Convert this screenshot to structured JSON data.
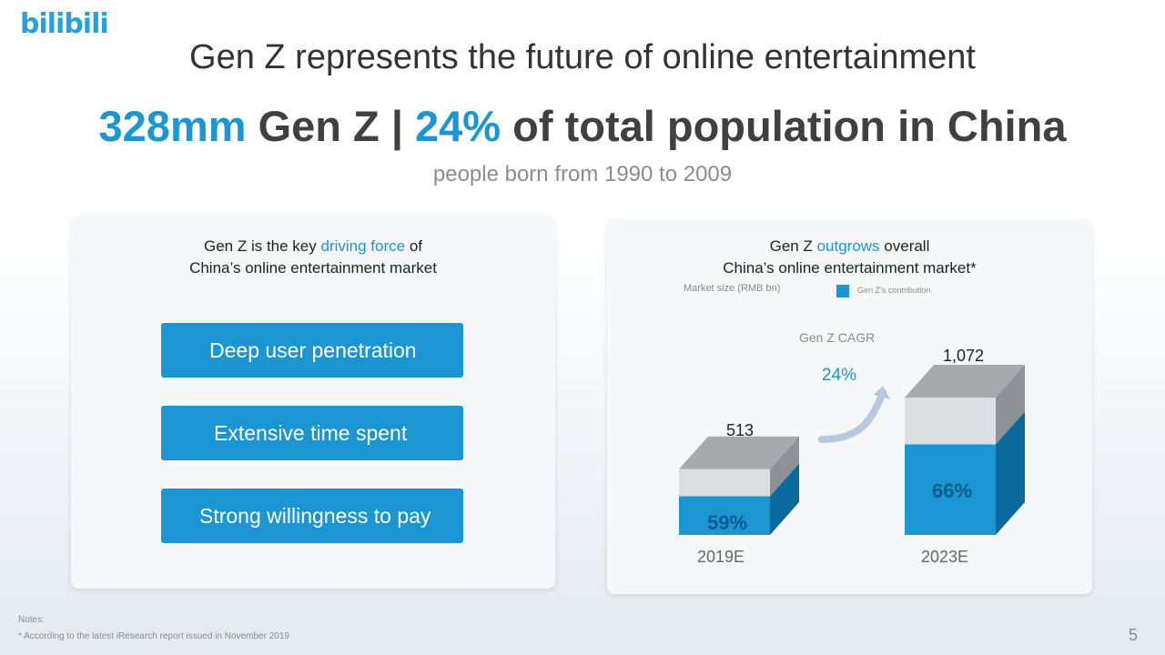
{
  "logo_text": "bilibili",
  "title": "Gen Z represents the future of online entertainment",
  "headline": {
    "num": "328mm",
    "mid": " Gen Z | ",
    "pct": "24%",
    "rest": " of total population in China"
  },
  "subhead": "people born from 1990 to 2009",
  "left_card": {
    "line1_pre": "Gen Z is the key ",
    "line1_hl": "driving force",
    "line1_post": " of",
    "line2": "China’s online entertainment market",
    "buttons": [
      "Deep user penetration",
      "Extensive time spent",
      "Strong willingness to pay"
    ]
  },
  "right_card": {
    "line1_pre": "Gen Z ",
    "line1_hl": "outgrows",
    "line1_post": " overall",
    "line2": "China’s online entertainment market*",
    "legend_left": "Market size (RMB bn)",
    "legend_right": "Gen Z’s contribution",
    "cagr_label": "Gen Z CAGR",
    "cagr_value": "24%"
  },
  "chart_data": {
    "type": "bar",
    "categories": [
      "2019E",
      "2023E"
    ],
    "totals": [
      513,
      1072
    ],
    "total_labels": [
      "513",
      "1,072"
    ],
    "genz_share_pct": [
      59,
      66
    ],
    "share_labels": [
      "59%",
      "66%"
    ],
    "series": [
      {
        "name": "Gen Z’s contribution",
        "color": "#1b96d2"
      }
    ]
  },
  "colors": {
    "accent_blue": "#1b96d2",
    "bar_blue_front": "#1b96d2",
    "bar_blue_side": "#0b6a9c",
    "bar_grey_front": "#dcdde0",
    "bar_grey_side": "#8e9196",
    "bar_grey_top": "#a7a9ad"
  },
  "notes": {
    "label": "Notes:",
    "text": "* According to the latest iResearch report issued in November 2019"
  },
  "page_number": "5"
}
